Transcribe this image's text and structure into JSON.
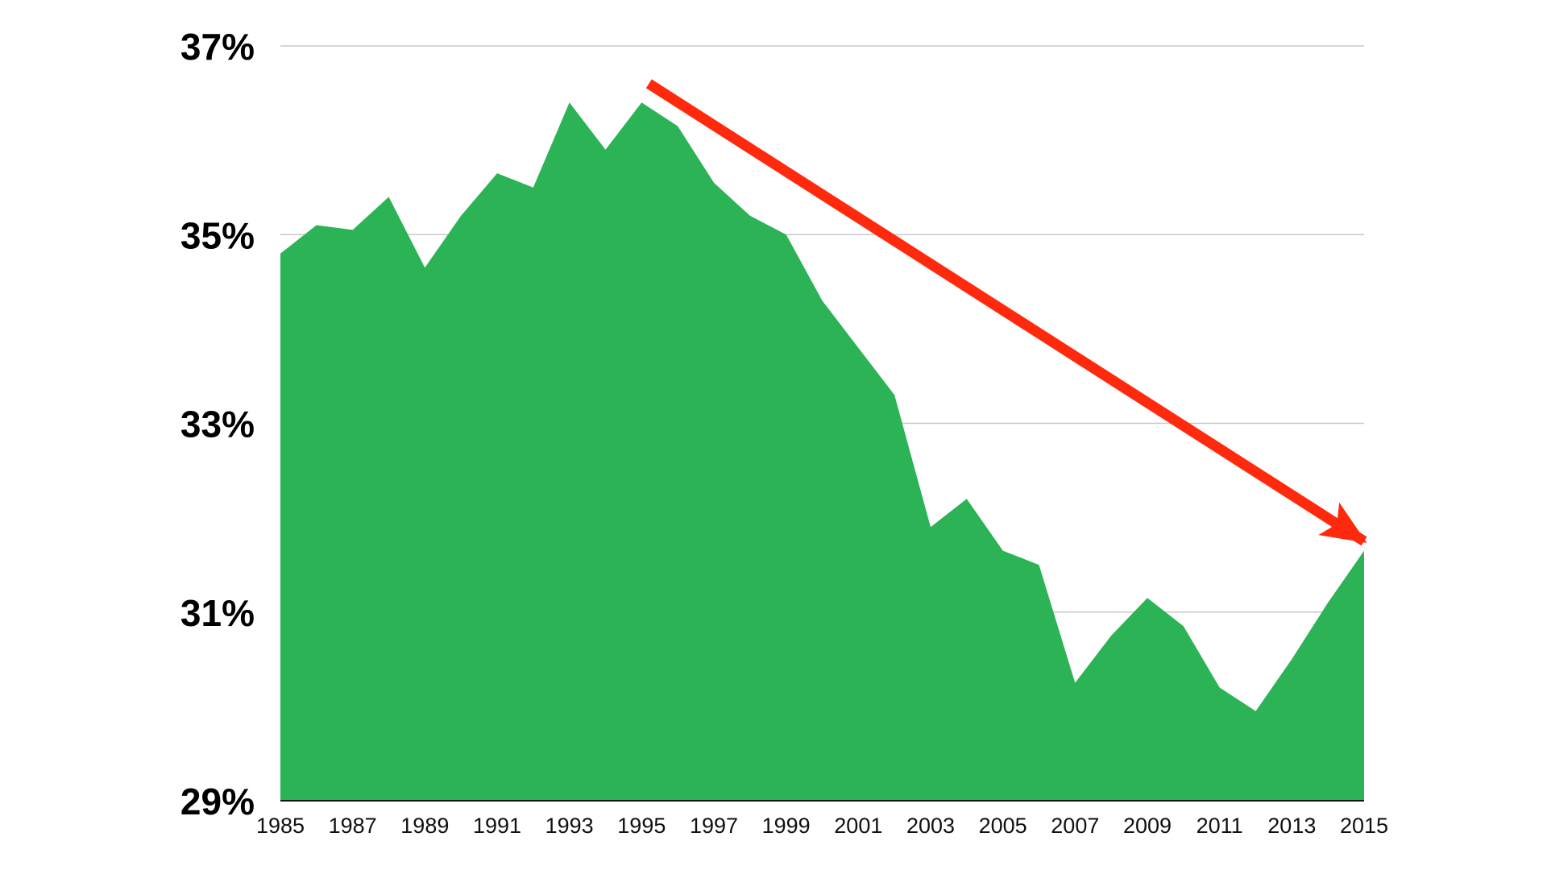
{
  "chart_data": {
    "type": "area",
    "title": "",
    "xlabel": "",
    "ylabel": "",
    "x": [
      1985,
      1986,
      1987,
      1988,
      1989,
      1990,
      1991,
      1992,
      1993,
      1994,
      1995,
      1996,
      1997,
      1998,
      1999,
      2000,
      2001,
      2002,
      2003,
      2004,
      2005,
      2006,
      2007,
      2008,
      2009,
      2010,
      2011,
      2012,
      2013,
      2014,
      2015
    ],
    "values": [
      34.8,
      35.1,
      35.05,
      35.4,
      34.65,
      35.2,
      35.65,
      35.5,
      36.4,
      35.9,
      36.4,
      36.15,
      35.55,
      35.2,
      35.0,
      34.3,
      33.8,
      33.3,
      31.9,
      32.2,
      31.65,
      31.5,
      30.25,
      30.75,
      31.15,
      30.85,
      30.2,
      29.95,
      30.5,
      31.1,
      31.65
    ],
    "ylim": [
      29,
      37
    ],
    "xlim": [
      1985,
      2015
    ],
    "y_ticks": [
      37,
      35,
      33,
      31,
      29
    ],
    "y_tick_labels": [
      "37%",
      "35%",
      "33%",
      "31%",
      "29%"
    ],
    "x_ticks": [
      1985,
      1987,
      1989,
      1991,
      1993,
      1995,
      1997,
      1999,
      2001,
      2003,
      2005,
      2007,
      2009,
      2011,
      2013,
      2015
    ],
    "x_tick_labels": [
      "1985",
      "1987",
      "1989",
      "1991",
      "1993",
      "1995",
      "1997",
      "1999",
      "2001",
      "2003",
      "2005",
      "2007",
      "2009",
      "2011",
      "2013",
      "2015"
    ],
    "grid": true,
    "legend": "none",
    "annotations": [
      {
        "type": "trend-arrow",
        "from": {
          "x": 1995.2,
          "y": 36.6
        },
        "to": {
          "x": 2015,
          "y": 31.75
        },
        "color": "#ff2a0d"
      }
    ],
    "colors": {
      "area": "#2bb356",
      "arrow": "#ff2a0d",
      "grid": "#c8c8c8",
      "axis": "#111111"
    }
  }
}
